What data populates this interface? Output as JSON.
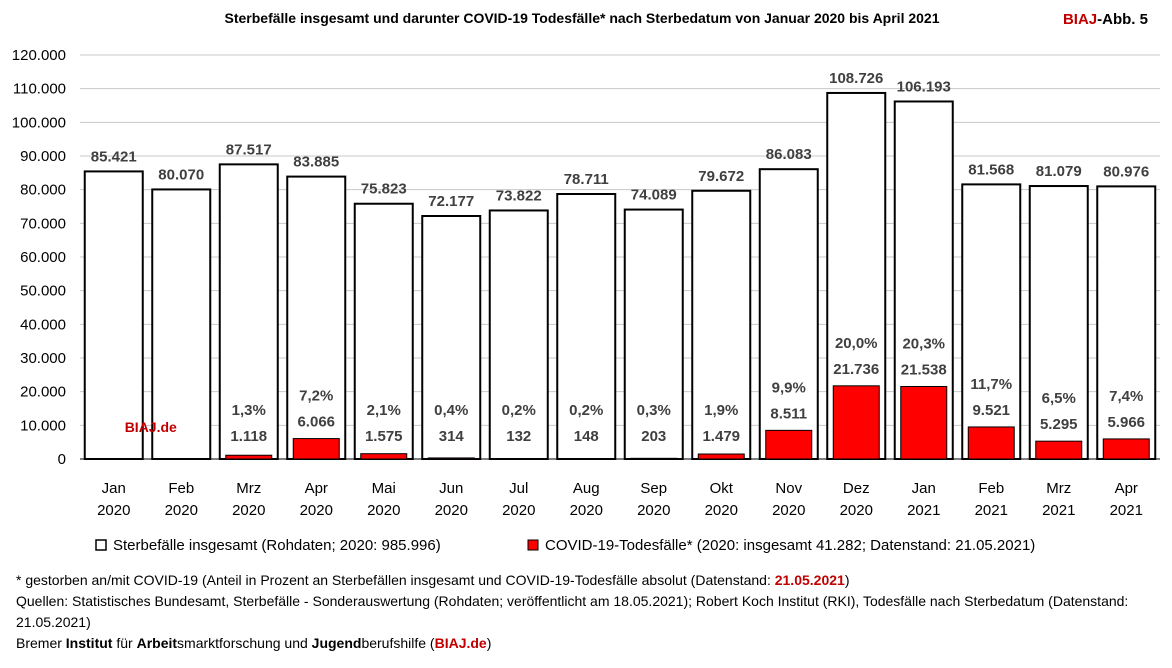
{
  "chart_data": {
    "type": "bar",
    "title": "Sterbefälle insgesamt und darunter COVID-19 Todesfälle* nach Sterbedatum von Januar 2020 bis April 2021",
    "badge": {
      "brand": "BIAJ",
      "suffix": "-Abb. 5"
    },
    "watermark": "BIAJ.de",
    "categories": [
      {
        "month": "Jan",
        "year": "2020"
      },
      {
        "month": "Feb",
        "year": "2020"
      },
      {
        "month": "Mrz",
        "year": "2020"
      },
      {
        "month": "Apr",
        "year": "2020"
      },
      {
        "month": "Mai",
        "year": "2020"
      },
      {
        "month": "Jun",
        "year": "2020"
      },
      {
        "month": "Jul",
        "year": "2020"
      },
      {
        "month": "Aug",
        "year": "2020"
      },
      {
        "month": "Sep",
        "year": "2020"
      },
      {
        "month": "Okt",
        "year": "2020"
      },
      {
        "month": "Nov",
        "year": "2020"
      },
      {
        "month": "Dez",
        "year": "2020"
      },
      {
        "month": "Jan",
        "year": "2021"
      },
      {
        "month": "Feb",
        "year": "2021"
      },
      {
        "month": "Mrz",
        "year": "2021"
      },
      {
        "month": "Apr",
        "year": "2021"
      }
    ],
    "series": [
      {
        "name": "Sterbefälle insgesamt (Rohdaten; 2020: 985.996)",
        "color": "#ffffff",
        "values": [
          85421,
          80070,
          87517,
          83885,
          75823,
          72177,
          73822,
          78711,
          74089,
          79672,
          86083,
          108726,
          106193,
          81568,
          81079,
          80976
        ],
        "labels": [
          "85.421",
          "80.070",
          "87.517",
          "83.885",
          "75.823",
          "72.177",
          "73.822",
          "78.711",
          "74.089",
          "79.672",
          "86.083",
          "108.726",
          "106.193",
          "81.568",
          "81.079",
          "80.976"
        ]
      },
      {
        "name": "COVID-19-Todesfälle* (2020: insgesamt 41.282; Datenstand: 21.05.2021)",
        "color": "#ff0000",
        "values": [
          0,
          0,
          1118,
          6066,
          1575,
          314,
          132,
          148,
          203,
          1479,
          8511,
          21736,
          21538,
          9521,
          5295,
          5966
        ],
        "labels": [
          "",
          "",
          "1.118",
          "6.066",
          "1.575",
          "314",
          "132",
          "148",
          "203",
          "1.479",
          "8.511",
          "21.736",
          "21.538",
          "9.521",
          "5.295",
          "5.966"
        ],
        "percent_labels": [
          "",
          "",
          "1,3%",
          "7,2%",
          "2,1%",
          "0,4%",
          "0,2%",
          "0,2%",
          "0,3%",
          "1,9%",
          "9,9%",
          "20,0%",
          "20,3%",
          "11,7%",
          "6,5%",
          "7,4%"
        ]
      }
    ],
    "ylim": [
      0,
      120000
    ],
    "yticks": [
      0,
      10000,
      20000,
      30000,
      40000,
      50000,
      60000,
      70000,
      80000,
      90000,
      100000,
      110000,
      120000
    ],
    "ytick_labels": [
      "0",
      "10.000",
      "20.000",
      "30.000",
      "40.000",
      "50.000",
      "60.000",
      "70.000",
      "80.000",
      "90.000",
      "100.000",
      "110.000",
      "120.000"
    ],
    "grid": true,
    "legend_position": "bottom"
  },
  "notes": {
    "footnote_prefix": "* gestorben an/mit COVID-19 (Anteil in Prozent an Sterbefällen insgesamt und COVID-19-Todesfälle absolut (Datenstand: ",
    "footnote_date": "21.05.2021",
    "footnote_suffix": ")",
    "sources": "Quellen: Statistisches Bundesamt, Sterbefälle - Sonderauswertung (Rohdaten; veröffentlicht am 18.05.2021); Robert Koch Institut (RKI), Todesfälle nach Sterbedatum (Datenstand: 21.05.2021)",
    "institute": {
      "w1": "Bremer ",
      "w2": "Institut",
      "w3": " für ",
      "w4": "Arbeit",
      "w5": "smarktforschung und ",
      "w6": "Jugend",
      "w7": "berufshilfe (",
      "w8": "BIAJ.de",
      "w9": ")"
    }
  }
}
